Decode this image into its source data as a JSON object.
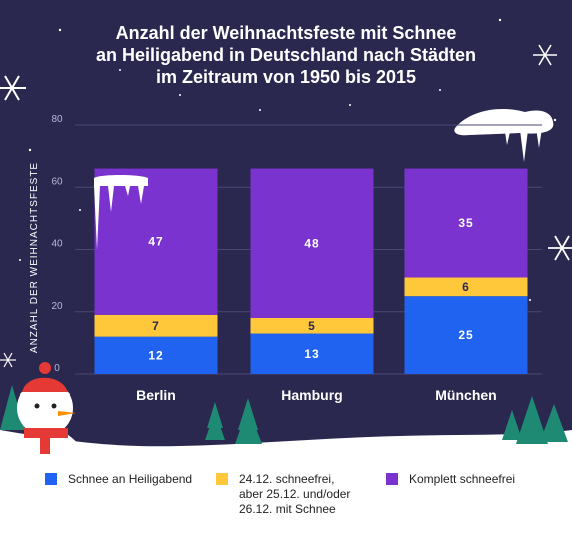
{
  "title_lines": [
    "Anzahl der Weihnachtsfeste mit Schnee",
    "an Heiligabend in Deutschland nach Städten",
    "im Zeitraum von 1950 bis 2015"
  ],
  "colors": {
    "background": "#2b2850",
    "snow_on_christmas_eve": "#1f63f0",
    "partial_snow": "#ffc83a",
    "no_snow": "#7b33cf",
    "snow_ground": "#ffffff"
  },
  "chart_data": {
    "type": "bar",
    "stacked": true,
    "title": "Anzahl der Weihnachtsfeste mit Schnee an Heiligabend in Deutschland nach Städten im Zeitraum von 1950 bis 2015",
    "ylabel": "ANZAHL DER WEIHNACHTSFESTE",
    "xlabel": "",
    "ylim": [
      0,
      80
    ],
    "yticks": [
      0,
      20,
      40,
      60,
      80
    ],
    "categories": [
      "Berlin",
      "Hamburg",
      "München"
    ],
    "series": [
      {
        "name": "Schnee an Heiligabend",
        "values": [
          12,
          13,
          25
        ],
        "color": "#1f63f0"
      },
      {
        "name": "24.12. schneefrei,\naber 25.12. und/oder\n26.12. mit Schnee",
        "values": [
          7,
          5,
          6
        ],
        "color": "#ffc83a"
      },
      {
        "name": "Komplett schneefrei",
        "values": [
          47,
          48,
          35
        ],
        "color": "#7b33cf"
      }
    ],
    "legend_position": "bottom",
    "grid": true
  }
}
